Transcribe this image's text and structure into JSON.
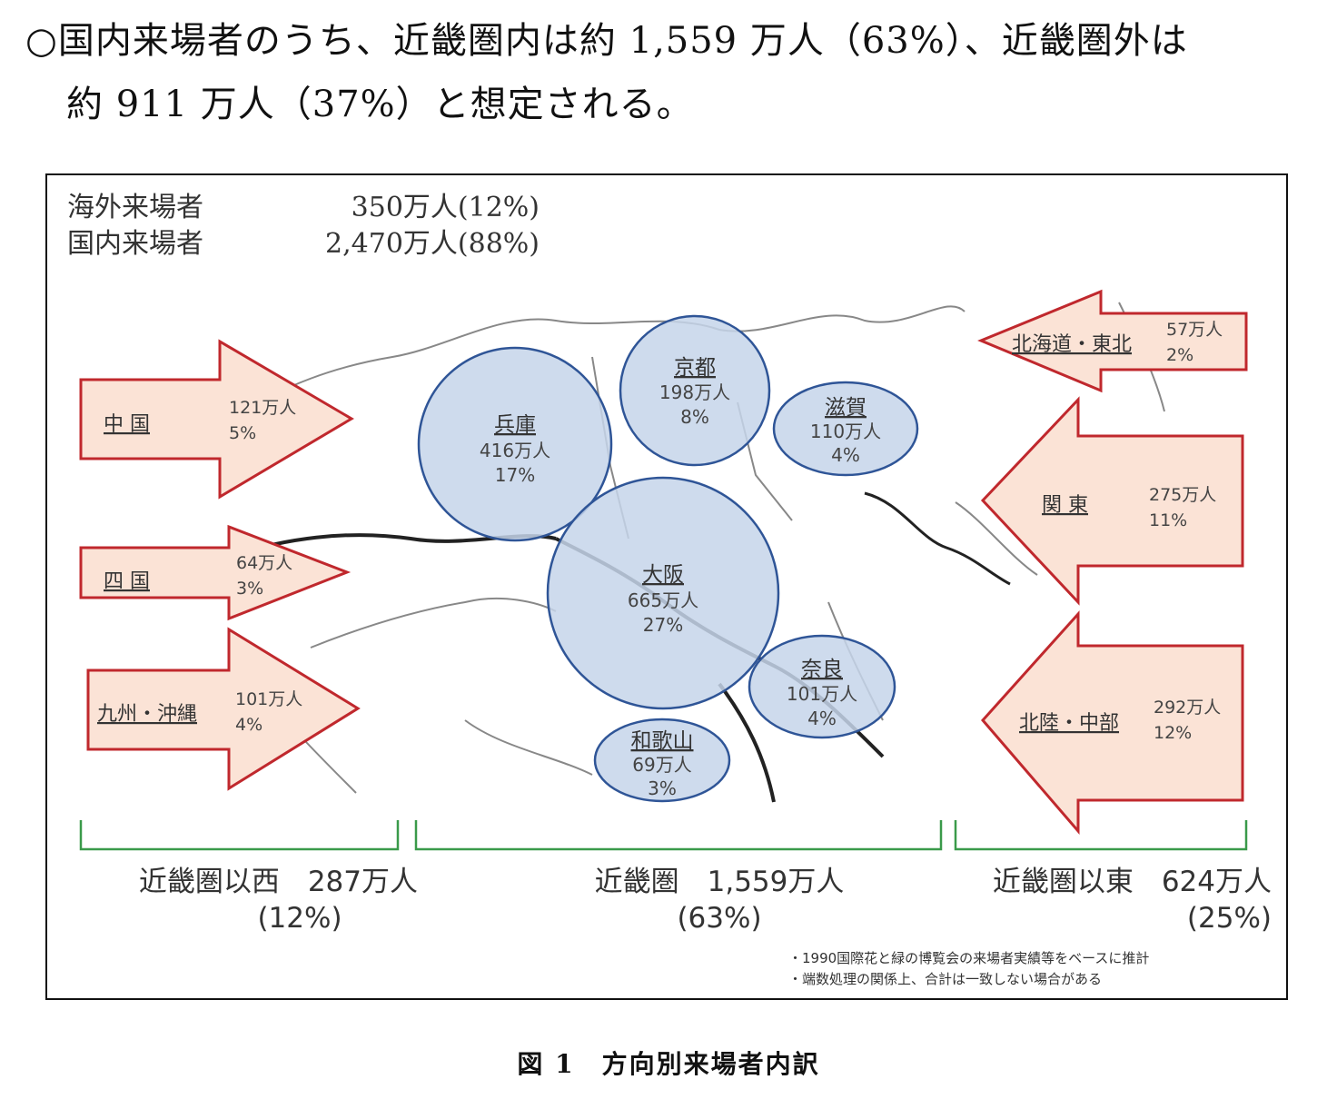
{
  "intro": {
    "line1": "○国内来場者のうち、近畿圏内は約 1,559 万人（63%）、近畿圏外は",
    "line2": "約 911 万人（37%）と想定される。"
  },
  "figure": {
    "totals": {
      "overseas_label": "海外来場者",
      "overseas_value": "350万人(12%)",
      "domestic_label": "国内来場者",
      "domestic_value": "2,470万人(88%)"
    },
    "west_arrows": [
      {
        "name": "中 国",
        "count": "121万人",
        "pct": "5%"
      },
      {
        "name": "四 国",
        "count": "64万人",
        "pct": "3%"
      },
      {
        "name": "九州・沖縄",
        "count": "101万人",
        "pct": "4%"
      }
    ],
    "east_arrows": [
      {
        "name": "北海道・東北",
        "count": "57万人",
        "pct": "2%"
      },
      {
        "name": "関 東",
        "count": "275万人",
        "pct": "11%"
      },
      {
        "name": "北陸・中部",
        "count": "292万人",
        "pct": "12%"
      }
    ],
    "prefectures": [
      {
        "name": "兵庫",
        "count": "416万人",
        "pct": "17%"
      },
      {
        "name": "京都",
        "count": "198万人",
        "pct": "8%"
      },
      {
        "name": "滋賀",
        "count": "110万人",
        "pct": "4%"
      },
      {
        "name": "大阪",
        "count": "665万人",
        "pct": "27%"
      },
      {
        "name": "奈良",
        "count": "101万人",
        "pct": "4%"
      },
      {
        "name": "和歌山",
        "count": "69万人",
        "pct": "3%"
      }
    ],
    "summary": {
      "west": {
        "label": "近畿圏以西　287万人",
        "pct": "(12%)"
      },
      "kinki": {
        "label": "近畿圏　1,559万人",
        "pct": "(63%)"
      },
      "east": {
        "label": "近畿圏以東　624万人",
        "pct": "(25%)"
      }
    },
    "notes": [
      "・1990国際花と緑の博覧会の来場者実績等をベースに推計",
      "・端数処理の関係上、合計は一致しない場合がある"
    ],
    "colors": {
      "arrow_fill": "#fbe3d6",
      "arrow_stroke": "#c0282d",
      "circle_fill": "#c5d5ea",
      "circle_stroke": "#2f5597",
      "bracket": "#3a9a4a"
    }
  },
  "caption": "図 1　方向別来場者内訳"
}
